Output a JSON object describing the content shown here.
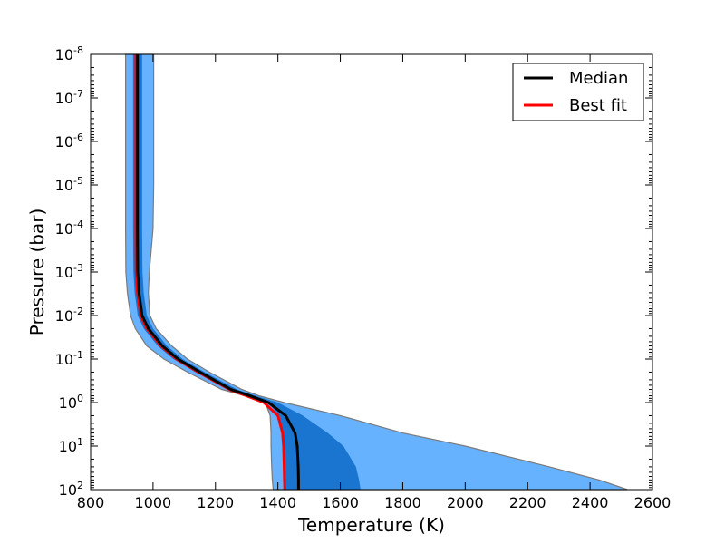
{
  "chart_data": {
    "type": "area",
    "xlabel": "Temperature  (K)",
    "ylabel": "Pressure  (bar)",
    "xlim": [
      800,
      2600
    ],
    "ylim": [
      100,
      1e-08
    ],
    "yscale": "log",
    "y_inverted": true,
    "grid": false,
    "legend_placement": "top-right",
    "x_ticks": [
      "800",
      "1000",
      "1200",
      "1400",
      "1600",
      "1800",
      "2000",
      "2200",
      "2400",
      "2600"
    ],
    "x_tick_values": [
      800,
      1000,
      1200,
      1400,
      1600,
      1800,
      2000,
      2200,
      2400,
      2600
    ],
    "y_tick_exponents": [
      "-8",
      "-7",
      "-6",
      "-5",
      "-4",
      "-3",
      "-2",
      "-1",
      "0",
      "1",
      "2"
    ],
    "y_tick_base": "10",
    "pressure": [
      1e-08,
      1e-07,
      1e-06,
      1e-05,
      0.0001,
      0.001,
      0.003,
      0.01,
      0.02,
      0.05,
      0.1,
      0.2,
      0.5,
      0.7,
      1.0,
      2.0,
      5.0,
      10,
      30,
      60,
      100
    ],
    "series": [
      {
        "name": "Median",
        "color": "#000000",
        "temperature": [
          950,
          950,
          950,
          950,
          950,
          951,
          955,
          965,
          985,
          1030,
          1080,
          1150,
          1250,
          1310,
          1370,
          1425,
          1455,
          1462,
          1465,
          1466,
          1466
        ]
      },
      {
        "name": "Best fit",
        "color": "#ff0000",
        "temperature": [
          945,
          945,
          945,
          945,
          945,
          946,
          950,
          960,
          980,
          1025,
          1075,
          1145,
          1245,
          1300,
          1355,
          1400,
          1415,
          1418,
          1420,
          1421,
          1422
        ]
      }
    ],
    "bands": [
      {
        "level": "outer",
        "color": "#66b2ff",
        "lower": [
          912,
          912,
          912,
          912,
          912,
          913,
          918,
          928,
          943,
          980,
          1035,
          1110,
          1220,
          1295,
          1360,
          1375,
          1378,
          1378,
          1380,
          1382,
          1385
        ],
        "upper": [
          1002,
          1002,
          1002,
          1002,
          1000,
          988,
          985,
          990,
          1010,
          1060,
          1110,
          1180,
          1285,
          1340,
          1420,
          1600,
          1800,
          2000,
          2270,
          2430,
          2520
        ]
      },
      {
        "level": "inner",
        "color": "#1a75d1",
        "lower": [
          936,
          936,
          936,
          936,
          936,
          937,
          941,
          951,
          970,
          1015,
          1065,
          1135,
          1240,
          1302,
          1368,
          1405,
          1415,
          1418,
          1420,
          1421,
          1422
        ],
        "upper": [
          965,
          965,
          965,
          965,
          965,
          966,
          970,
          980,
          1000,
          1045,
          1095,
          1165,
          1270,
          1330,
          1400,
          1480,
          1560,
          1610,
          1650,
          1660,
          1665
        ]
      }
    ]
  }
}
